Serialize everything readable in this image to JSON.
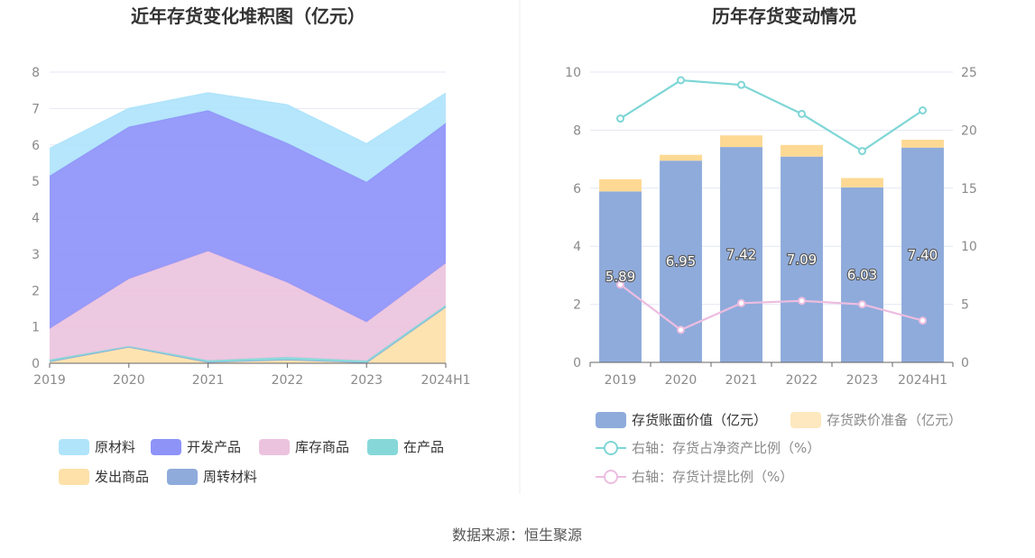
{
  "source": "数据来源：恒生聚源",
  "colors": {
    "raw_material": "#b0e4fb",
    "developing": "#8e93f8",
    "stock_goods": "#ecc3de",
    "wip": "#86d8d8",
    "shipped": "#fde1a9",
    "turnover": "#8fabdb",
    "bar_value": "#8fabdb",
    "bar_impair": "#fdd994",
    "line_ratio": "#7fd6d6",
    "line_provision": "#ecbde0",
    "grid": "#e4e7f5",
    "axis": "#666666"
  },
  "chart_data": [
    {
      "type": "area",
      "title": "近年存货变化堆积图（亿元）",
      "categories": [
        "2019",
        "2020",
        "2021",
        "2022",
        "2023",
        "2024H1"
      ],
      "ylim": [
        0,
        8
      ],
      "yticks": [
        "0",
        "1",
        "2",
        "3",
        "4",
        "5",
        "6",
        "7",
        "8"
      ],
      "stacked": true,
      "grid": true,
      "legend_position": "bottom",
      "series": [
        {
          "name": "发出商品",
          "values": [
            0.05,
            0.45,
            0.03,
            0.1,
            0.02,
            1.55
          ]
        },
        {
          "name": "周转材料",
          "values": [
            0.0,
            0.0,
            0.0,
            0.0,
            0.0,
            0.0
          ]
        },
        {
          "name": "在产品",
          "values": [
            0.05,
            0.02,
            0.05,
            0.07,
            0.05,
            0.05
          ]
        },
        {
          "name": "库存商品",
          "values": [
            0.85,
            1.85,
            3.0,
            2.05,
            1.06,
            1.15
          ]
        },
        {
          "name": "开发产品",
          "values": [
            4.2,
            4.18,
            3.87,
            3.83,
            3.85,
            3.85
          ]
        },
        {
          "name": "原材料",
          "values": [
            0.75,
            0.5,
            0.48,
            1.05,
            1.05,
            0.82
          ]
        }
      ],
      "legend": [
        "原材料",
        "开发产品",
        "库存商品",
        "在产品",
        "发出商品",
        "周转材料"
      ]
    },
    {
      "type": "bar",
      "title": "历年存货变动情况",
      "categories": [
        "2019",
        "2020",
        "2021",
        "2022",
        "2023",
        "2024H1"
      ],
      "ylim": [
        0,
        10
      ],
      "yticks": [
        "0",
        "2",
        "4",
        "6",
        "8",
        "10"
      ],
      "y2lim": [
        0,
        25
      ],
      "y2ticks": [
        "0",
        "5",
        "10",
        "15",
        "20",
        "25"
      ],
      "grid": true,
      "legend_position": "bottom",
      "series": [
        {
          "name": "存货账面价值（亿元）",
          "values": [
            5.89,
            6.95,
            7.42,
            7.09,
            6.03,
            7.4
          ],
          "labels": [
            "5.89",
            "6.95",
            "7.42",
            "7.09",
            "6.03",
            "7.40"
          ]
        },
        {
          "name": "存货跌价准备（亿元）",
          "values": [
            0.42,
            0.2,
            0.4,
            0.4,
            0.32,
            0.27
          ]
        },
        {
          "name": "右轴：存货占净资产比例（%）",
          "axis": "right",
          "type": "line",
          "values": [
            21.0,
            24.3,
            23.9,
            21.4,
            18.2,
            21.7
          ]
        },
        {
          "name": "右轴：存货计提比例（%）",
          "axis": "right",
          "type": "line",
          "values": [
            6.7,
            2.8,
            5.1,
            5.3,
            5.0,
            3.6
          ]
        }
      ]
    }
  ]
}
